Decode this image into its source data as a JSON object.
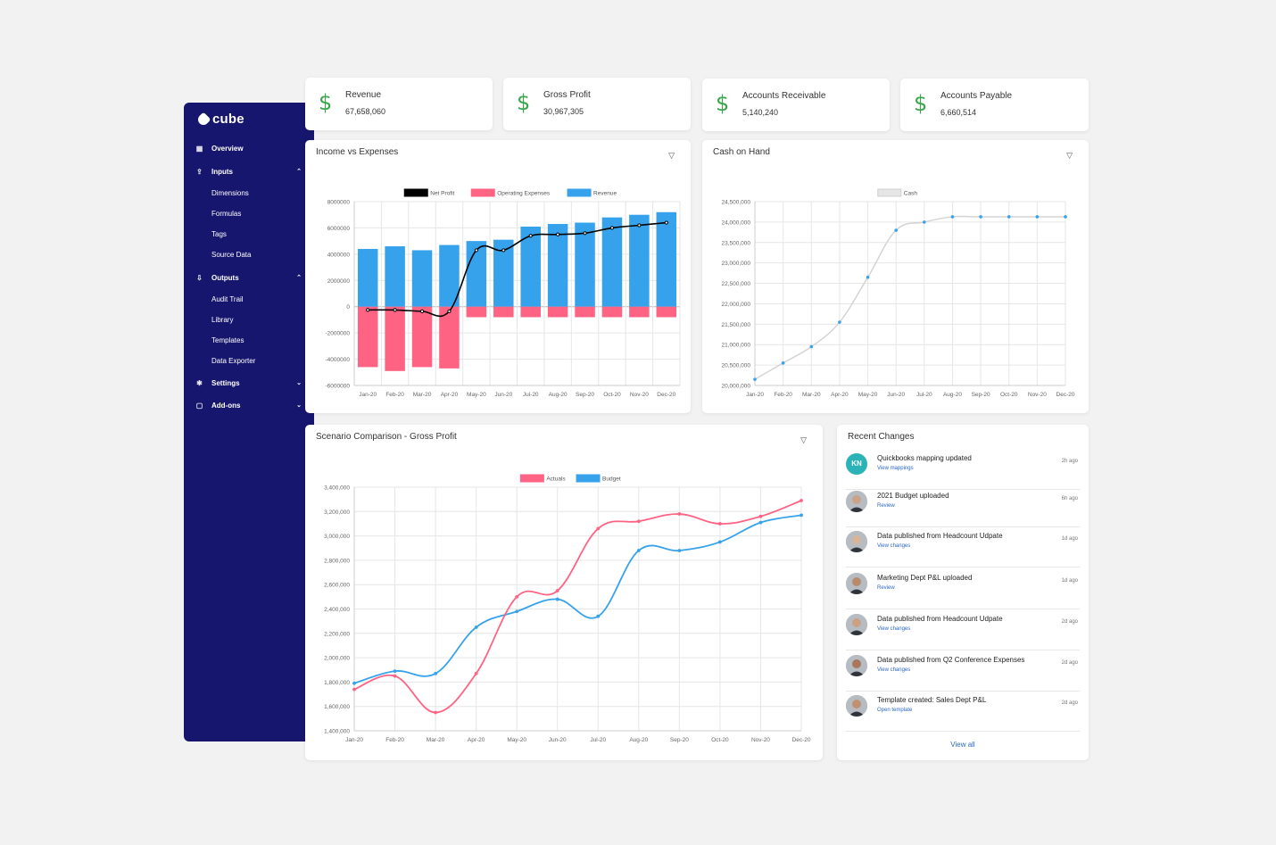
{
  "sidebar": {
    "logo": "cube",
    "items": [
      {
        "label": "Overview",
        "type": "main",
        "icon": "grid-icon",
        "chev": ""
      },
      {
        "label": "Inputs",
        "type": "main",
        "icon": "upload-icon",
        "chev": "^"
      },
      {
        "label": "Dimensions",
        "type": "sub",
        "icon": "",
        "chev": ""
      },
      {
        "label": "Formulas",
        "type": "sub",
        "icon": "",
        "chev": ""
      },
      {
        "label": "Tags",
        "type": "sub",
        "icon": "",
        "chev": ""
      },
      {
        "label": "Source Data",
        "type": "sub",
        "icon": "",
        "chev": ""
      },
      {
        "label": "Outputs",
        "type": "main",
        "icon": "download-icon",
        "chev": "^"
      },
      {
        "label": "Audit Trail",
        "type": "sub",
        "icon": "",
        "chev": ""
      },
      {
        "label": "Library",
        "type": "sub",
        "icon": "",
        "chev": ""
      },
      {
        "label": "Templates",
        "type": "sub",
        "icon": "",
        "chev": ""
      },
      {
        "label": "Data Exporter",
        "type": "sub",
        "icon": "",
        "chev": ""
      },
      {
        "label": "Settings",
        "type": "main",
        "icon": "gear-icon",
        "chev": "v"
      },
      {
        "label": "Add-ons",
        "type": "main",
        "icon": "box-icon",
        "chev": "v"
      }
    ]
  },
  "kpis": [
    {
      "title": "Revenue",
      "value": "67,658,060",
      "icon": "dollar-icon"
    },
    {
      "title": "Gross Profit",
      "value": "30,967,305",
      "icon": "dollar-icon"
    },
    {
      "title": "Accounts Receivable",
      "value": "5,140,240",
      "icon": "dollar-icon"
    },
    {
      "title": "Accounts Payable",
      "value": "6,660,514",
      "icon": "dollar-icon"
    }
  ],
  "colors": {
    "sidebar": "#17166e",
    "net_profit": "#000000",
    "opex": "#ff6384",
    "revenue": "#36a2eb",
    "cash": "#36a2eb",
    "actuals": "#ff6384",
    "budget": "#36a2eb",
    "dollar": "#3aa64b"
  },
  "recent_changes": {
    "title": "Recent Changes",
    "items": [
      {
        "title": "Quickbooks mapping updated",
        "link": "View mappings",
        "time": "2h ago",
        "avatar": "KN"
      },
      {
        "title": "2021 Budget uploaded",
        "link": "Review",
        "time": "6h ago",
        "avatar": ""
      },
      {
        "title": "Data published from Headcount Udpate",
        "link": "View changes",
        "time": "1d ago",
        "avatar": ""
      },
      {
        "title": "Marketing Dept P&L uploaded",
        "link": "Review",
        "time": "1d ago",
        "avatar": ""
      },
      {
        "title": "Data published from Headcount Udpate",
        "link": "View changes",
        "time": "2d ago",
        "avatar": ""
      },
      {
        "title": "Data published from Q2 Conference Expenses",
        "link": "View changes",
        "time": "2d ago",
        "avatar": ""
      },
      {
        "title": "Template created: Sales Dept P&L",
        "link": "Open template",
        "time": "2d ago",
        "avatar": ""
      }
    ],
    "view_all": "View all"
  },
  "chart_data": [
    {
      "type": "bar",
      "title": "Income vs Expenses",
      "categories": [
        "Jan-20",
        "Feb-20",
        "Mar-20",
        "Apr-20",
        "May-20",
        "Jun-20",
        "Jul-20",
        "Aug-20",
        "Sep-20",
        "Oct-20",
        "Nov-20",
        "Dec-20"
      ],
      "ylim": [
        -6000000,
        8000000
      ],
      "yticks": [
        8000000,
        6000000,
        4000000,
        2000000,
        0,
        -2000000,
        -4000000,
        -6000000
      ],
      "ytick_labels": [
        "8000000",
        "6000000",
        "4000000",
        "2000000",
        "0",
        "-2000000",
        "-4000000",
        "-6000000"
      ],
      "legend": "top",
      "series": [
        {
          "name": "Net Profit",
          "kind": "line",
          "values": [
            -250000,
            -250000,
            -350000,
            -350000,
            4300000,
            4300000,
            5400000,
            5500000,
            5600000,
            6000000,
            6200000,
            6400000
          ]
        },
        {
          "name": "Operating Expenses",
          "kind": "bar",
          "values": [
            -4600000,
            -4900000,
            -4600000,
            -4700000,
            -800000,
            -800000,
            -800000,
            -800000,
            -800000,
            -800000,
            -800000,
            -800000
          ]
        },
        {
          "name": "Revenue",
          "kind": "bar",
          "values": [
            4400000,
            4600000,
            4300000,
            4700000,
            5000000,
            5100000,
            6100000,
            6300000,
            6400000,
            6800000,
            7000000,
            7200000
          ]
        }
      ]
    },
    {
      "type": "line",
      "title": "Cash on Hand",
      "categories": [
        "Jan-20",
        "Feb-20",
        "Mar-20",
        "Apr-20",
        "May-20",
        "Jun-20",
        "Jul-20",
        "Aug-20",
        "Sep-20",
        "Oct-20",
        "Nov-20",
        "Dec-20"
      ],
      "ylim": [
        20000000,
        24500000
      ],
      "yticks": [
        24500000,
        24000000,
        23500000,
        23000000,
        22500000,
        22000000,
        21500000,
        21000000,
        20500000,
        20000000
      ],
      "ytick_labels": [
        "24,500,000",
        "24,000,000",
        "23,500,000",
        "23,000,000",
        "22,500,000",
        "22,000,000",
        "21,500,000",
        "21,000,000",
        "20,500,000",
        "20,000,000"
      ],
      "legend": "top",
      "series": [
        {
          "name": "Cash",
          "values": [
            20150000,
            20550000,
            20950000,
            21550000,
            22650000,
            23800000,
            24000000,
            24130000,
            24130000,
            24130000,
            24130000,
            24130000
          ]
        }
      ]
    },
    {
      "type": "line",
      "title": "Scenario Comparison - Gross Profit",
      "categories": [
        "Jan-20",
        "Feb-20",
        "Mar-20",
        "Apr-20",
        "May-20",
        "Jun-20",
        "Jul-20",
        "Aug-20",
        "Sep-20",
        "Oct-20",
        "Nov-20",
        "Dec-20"
      ],
      "ylim": [
        1400000,
        3400000
      ],
      "yticks": [
        3400000,
        3200000,
        3000000,
        2800000,
        2600000,
        2400000,
        2200000,
        2000000,
        1800000,
        1600000,
        1400000
      ],
      "ytick_labels": [
        "3,400,000",
        "3,200,000",
        "3,000,000",
        "2,800,000",
        "2,600,000",
        "2,400,000",
        "2,200,000",
        "2,000,000",
        "1,800,000",
        "1,600,000",
        "1,400,000"
      ],
      "legend": "top",
      "series": [
        {
          "name": "Actuals",
          "values": [
            1740000,
            1850000,
            1550000,
            1870000,
            2500000,
            2550000,
            3060000,
            3120000,
            3180000,
            3100000,
            3160000,
            3290000
          ]
        },
        {
          "name": "Budget",
          "values": [
            1790000,
            1890000,
            1870000,
            2250000,
            2380000,
            2480000,
            2340000,
            2880000,
            2880000,
            2950000,
            3110000,
            3170000
          ]
        }
      ]
    }
  ]
}
